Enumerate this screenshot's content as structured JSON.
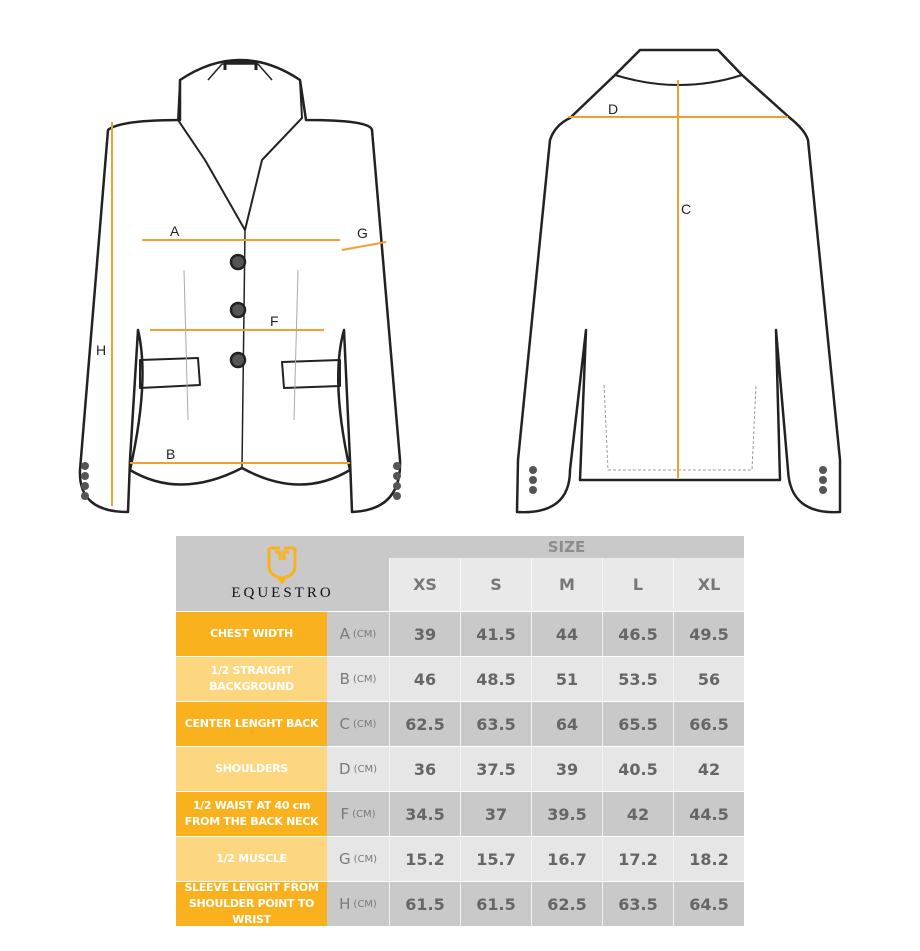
{
  "brand": {
    "name": "EQUESTRO",
    "accent": "#f9b21d",
    "accent_light": "#fdd680"
  },
  "diagram_labels": {
    "A": "A",
    "B": "B",
    "C": "C",
    "D": "D",
    "F": "F",
    "G": "G",
    "H": "H"
  },
  "table": {
    "size_title": "SIZE",
    "sizes": [
      "XS",
      "S",
      "M",
      "L",
      "XL"
    ],
    "unit_suffix": "(CM)",
    "rows": [
      {
        "label": "CHEST WIDTH",
        "code": "A",
        "values": [
          "39",
          "41.5",
          "44",
          "46.5",
          "49.5"
        ]
      },
      {
        "label": "1/2 STRAIGHT BACKGROUND",
        "code": "B",
        "values": [
          "46",
          "48.5",
          "51",
          "53.5",
          "56"
        ]
      },
      {
        "label": "CENTER LENGHT BACK",
        "code": "C",
        "values": [
          "62.5",
          "63.5",
          "64",
          "65.5",
          "66.5"
        ]
      },
      {
        "label": "SHOULDERS",
        "code": "D",
        "values": [
          "36",
          "37.5",
          "39",
          "40.5",
          "42"
        ]
      },
      {
        "label": "1/2 WAIST AT 40 cm FROM THE BACK NECK",
        "code": "F",
        "values": [
          "34.5",
          "37",
          "39.5",
          "42",
          "44.5"
        ]
      },
      {
        "label": "1/2 MUSCLE",
        "code": "G",
        "values": [
          "15.2",
          "15.7",
          "16.7",
          "17.2",
          "18.2"
        ]
      },
      {
        "label": "SLEEVE LENGHT FROM SHOULDER POINT TO WRIST",
        "code": "H",
        "values": [
          "61.5",
          "61.5",
          "62.5",
          "63.5",
          "64.5"
        ]
      }
    ]
  }
}
